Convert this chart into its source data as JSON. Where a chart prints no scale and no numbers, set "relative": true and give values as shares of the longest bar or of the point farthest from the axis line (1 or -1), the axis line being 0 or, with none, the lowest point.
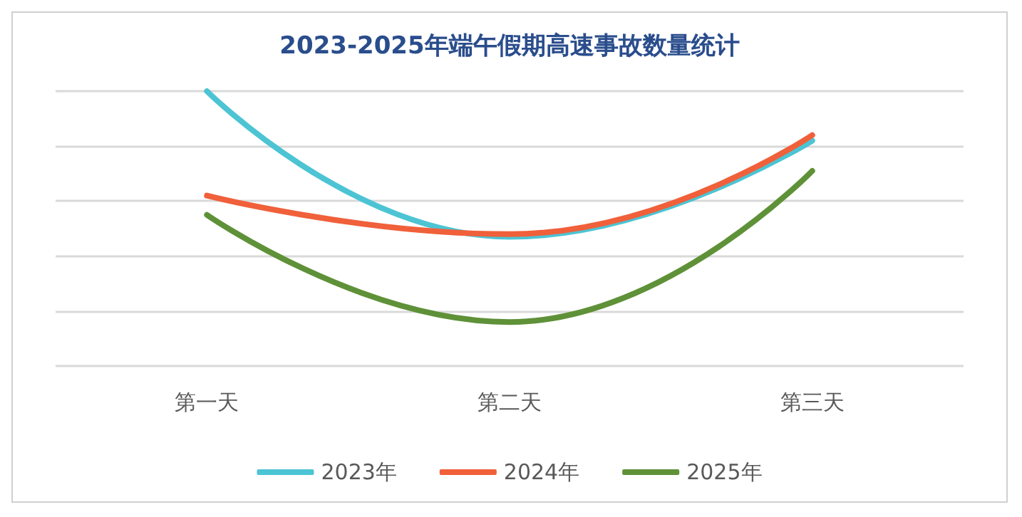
{
  "chart_data": {
    "type": "line",
    "title": "2023-2025年端午假期高速事故数量统计",
    "categories": [
      "第一天",
      "第二天",
      "第三天"
    ],
    "relative": true,
    "grid": "y",
    "legend": "bottom",
    "marker": "none",
    "line_style": "solid",
    "series": [
      {
        "name": "2023年",
        "color": "#4cc4d4",
        "values": [
          1,
          0.47,
          0.82
        ]
      },
      {
        "name": "2024年",
        "color": "#f0603a",
        "values": [
          0.62,
          0.48,
          0.84
        ]
      },
      {
        "name": "2025年",
        "color": "#5f9138",
        "values": [
          0.55,
          0.16,
          0.71
        ]
      }
    ]
  }
}
